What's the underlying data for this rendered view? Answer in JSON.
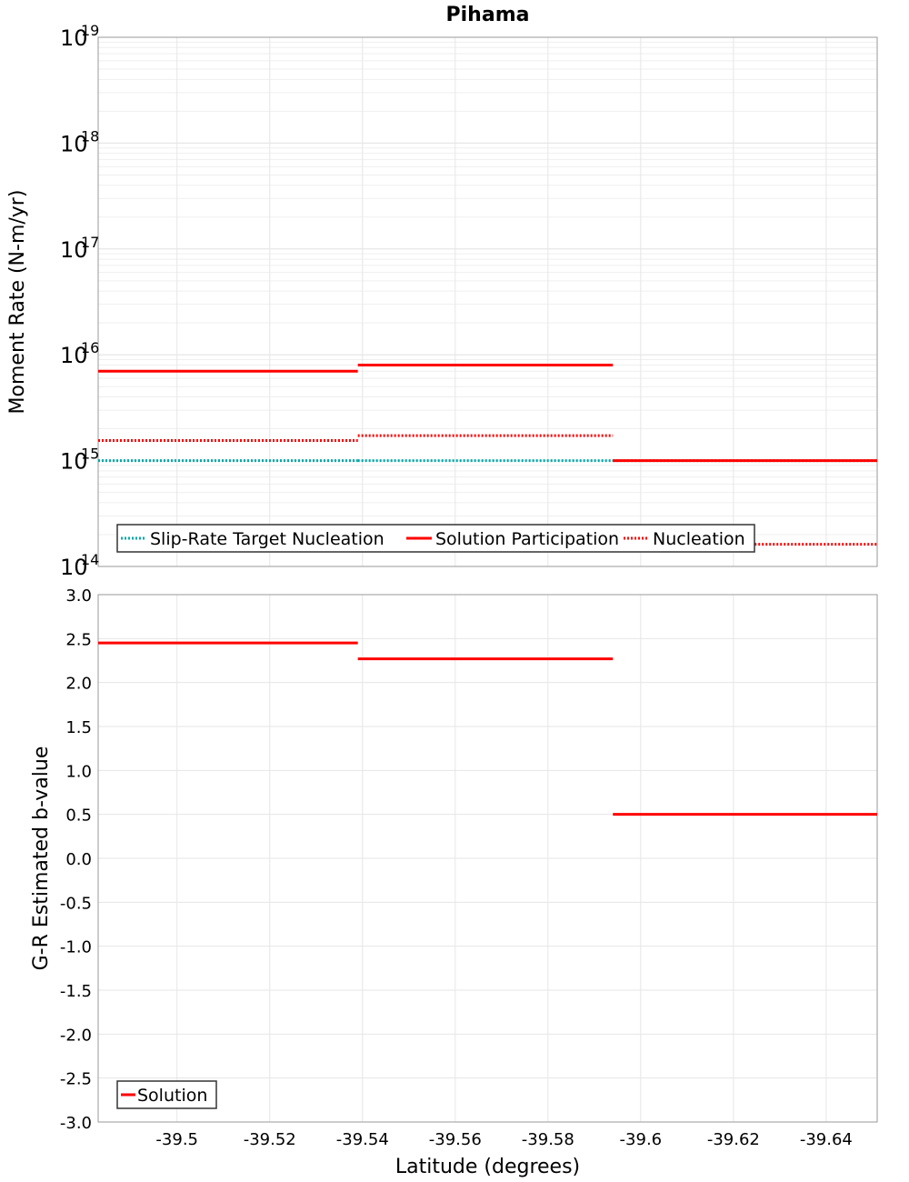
{
  "chart_data": [
    {
      "type": "line",
      "title": "Pihama",
      "xlabel": "",
      "ylabel": "Moment Rate (N-m/yr)",
      "yscale": "log",
      "ylim": [
        100000000000000.0,
        1e+19
      ],
      "xlim": [
        -39.483,
        -39.651
      ],
      "ytick_base": "10",
      "yticks": [
        {
          "value": 1e+19,
          "exp": "19"
        },
        {
          "value": 1e+18,
          "exp": "18"
        },
        {
          "value": 1e+17,
          "exp": "17"
        },
        {
          "value": 1e+16,
          "exp": "16"
        },
        {
          "value": 1000000000000000.0,
          "exp": "15"
        },
        {
          "value": 100000000000000.0,
          "exp": "14"
        }
      ],
      "legend": [
        "Slip-Rate Target Nucleation",
        "Solution Participation",
        "Nucleation"
      ],
      "legend_position": "bottom-left",
      "series": [
        {
          "name": "Slip-Rate Target Nucleation",
          "color": "#00aaaa",
          "style": "dotted",
          "segments": [
            {
              "x": [
                -39.483,
                -39.539
              ],
              "y": 1000000000000000.0
            },
            {
              "x": [
                -39.539,
                -39.594
              ],
              "y": 1000000000000000.0
            },
            {
              "x": [
                -39.594,
                -39.651
              ],
              "y": 1000000000000000.0
            }
          ]
        },
        {
          "name": "Solution Participation",
          "color": "#ff0000",
          "style": "solid",
          "segments": [
            {
              "x": [
                -39.483,
                -39.539
              ],
              "y": 7000000000000000.0
            },
            {
              "x": [
                -39.539,
                -39.594
              ],
              "y": 8000000000000000.0
            },
            {
              "x": [
                -39.594,
                -39.651
              ],
              "y": 1000000000000000.0
            }
          ]
        },
        {
          "name": "Nucleation",
          "color": "#ff0000",
          "style": "dotted",
          "segments": [
            {
              "x": [
                -39.483,
                -39.539
              ],
              "y": 1550000000000000.0
            },
            {
              "x": [
                -39.539,
                -39.594
              ],
              "y": 1720000000000000.0
            },
            {
              "x": [
                -39.594,
                -39.651
              ],
              "y": 162000000000000.0
            }
          ]
        }
      ]
    },
    {
      "type": "line",
      "title": "",
      "xlabel": "Latitude (degrees)",
      "ylabel": "G-R Estimated b-value",
      "ylim": [
        -3.0,
        3.0
      ],
      "xlim": [
        -39.483,
        -39.651
      ],
      "yticks": [
        "3.0",
        "2.5",
        "2.0",
        "1.5",
        "1.0",
        "0.5",
        "0.0",
        "-0.5",
        "-1.0",
        "-1.5",
        "-2.0",
        "-2.5",
        "-3.0"
      ],
      "xticks": [
        "-39.5",
        "-39.52",
        "-39.54",
        "-39.56",
        "-39.58",
        "-39.6",
        "-39.62",
        "-39.64"
      ],
      "legend": [
        "Solution"
      ],
      "legend_position": "bottom-left",
      "series": [
        {
          "name": "Solution",
          "color": "#ff0000",
          "style": "solid",
          "segments": [
            {
              "x": [
                -39.483,
                -39.539
              ],
              "y": 2.45
            },
            {
              "x": [
                -39.539,
                -39.594
              ],
              "y": 2.27
            },
            {
              "x": [
                -39.594,
                -39.651
              ],
              "y": 0.5
            }
          ]
        }
      ]
    }
  ]
}
